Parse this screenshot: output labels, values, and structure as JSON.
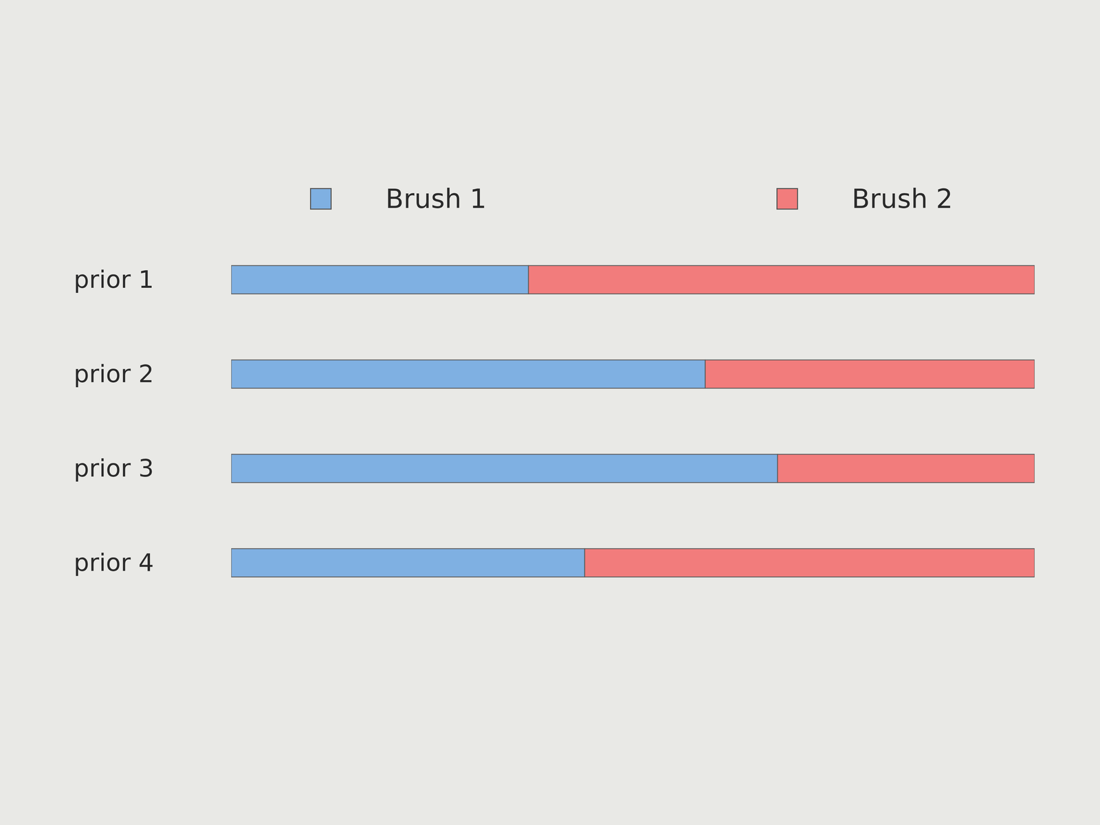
{
  "chart_data": {
    "type": "bar",
    "orientation": "horizontal",
    "stacked": true,
    "categories": [
      "prior 1",
      "prior 2",
      "prior 3",
      "prior 4"
    ],
    "series": [
      {
        "name": "Brush 1",
        "color": "#7fb0e2",
        "values": [
          37,
          59,
          68,
          44
        ]
      },
      {
        "name": "Brush 2",
        "color": "#f27c7c",
        "values": [
          63,
          41,
          32,
          56
        ]
      }
    ],
    "xlim": [
      0,
      100
    ],
    "tick_labels": "y",
    "legend": "top",
    "grid": false
  }
}
